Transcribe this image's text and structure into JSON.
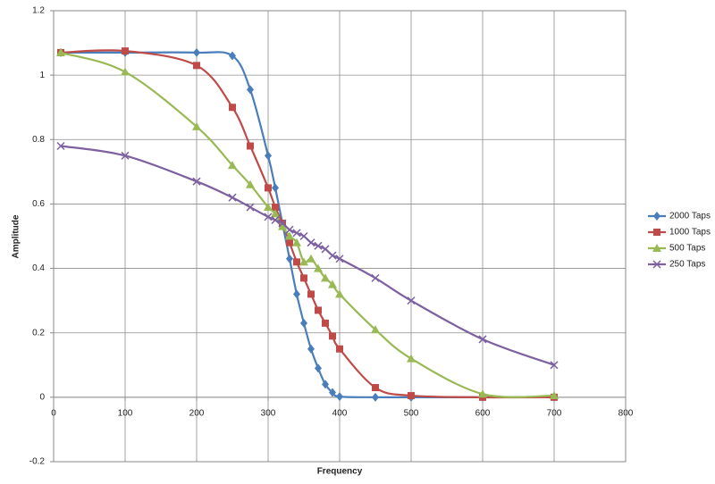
{
  "chart_data": {
    "type": "line",
    "x_label": "Frequency",
    "y_label": "Amplitude",
    "x": [
      10,
      100,
      200,
      250,
      275,
      300,
      310,
      320,
      330,
      340,
      350,
      360,
      370,
      380,
      390,
      400,
      450,
      500,
      600,
      700
    ],
    "series": [
      {
        "name": "2000 Taps",
        "color": "#4a7ebb",
        "marker": "diamond",
        "values": [
          1.07,
          1.07,
          1.07,
          1.06,
          0.955,
          0.75,
          0.65,
          0.54,
          0.43,
          0.32,
          0.23,
          0.15,
          0.09,
          0.04,
          0.015,
          0.002,
          0,
          0,
          0,
          0
        ]
      },
      {
        "name": "1000 Taps",
        "color": "#be4b48",
        "marker": "square",
        "values": [
          1.07,
          1.075,
          1.03,
          0.9,
          0.78,
          0.65,
          0.59,
          0.54,
          0.48,
          0.42,
          0.37,
          0.32,
          0.27,
          0.23,
          0.19,
          0.15,
          0.03,
          0.005,
          0,
          0
        ]
      },
      {
        "name": "500 Taps",
        "color": "#98b954",
        "marker": "triangle",
        "values": [
          1.07,
          1.01,
          0.84,
          0.72,
          0.66,
          0.59,
          0.57,
          0.53,
          0.5,
          0.48,
          0.42,
          0.43,
          0.4,
          0.37,
          0.35,
          0.32,
          0.21,
          0.12,
          0.01,
          0.005
        ]
      },
      {
        "name": "250 Taps",
        "color": "#7d60a0",
        "marker": "x",
        "values": [
          0.78,
          0.75,
          0.67,
          0.62,
          0.59,
          0.56,
          0.55,
          0.54,
          0.52,
          0.51,
          0.5,
          0.48,
          0.47,
          0.46,
          0.44,
          0.43,
          0.37,
          0.3,
          0.18,
          0.1
        ]
      }
    ],
    "xlim": [
      0,
      800
    ],
    "xticks": [
      0,
      100,
      200,
      300,
      400,
      500,
      600,
      700,
      800
    ],
    "ylim": [
      -0.2,
      1.2
    ],
    "yticks": [
      -0.2,
      0,
      0.2,
      0.4,
      0.6,
      0.8,
      1,
      1.2
    ],
    "grid": true,
    "smooth": true,
    "legend": "right"
  }
}
